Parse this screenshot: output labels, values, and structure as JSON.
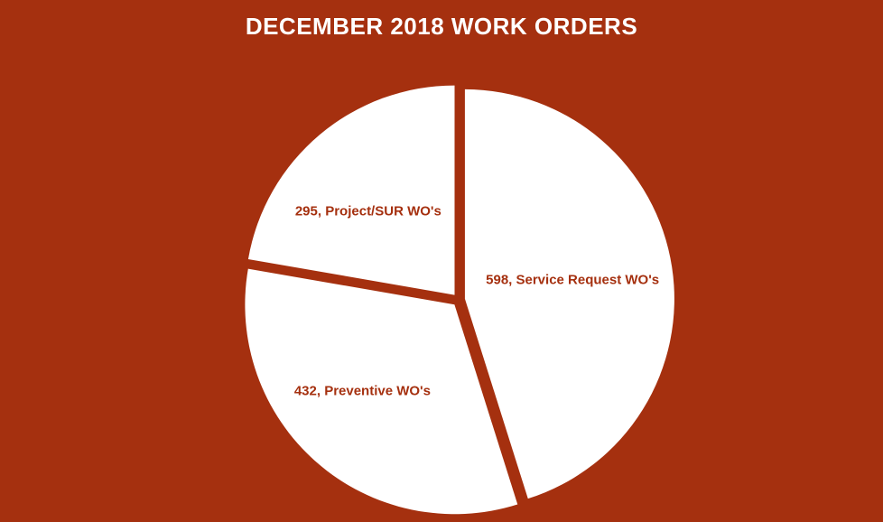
{
  "colors": {
    "background": "#A5300F",
    "slice_fill": "#FFFFFF",
    "label_text": "#A5300F",
    "title_text": "#FFFFFF"
  },
  "chart_data": {
    "type": "pie",
    "title": "DECEMBER 2018 WORK ORDERS",
    "slices": [
      {
        "category": "Service Request WO's",
        "value": 598,
        "label": "598, Service Request WO's"
      },
      {
        "category": "Preventive WO's",
        "value": 432,
        "label": "432, Preventive WO's"
      },
      {
        "category": "Project/SUR WO's",
        "value": 295,
        "label": "295, Project/SUR WO's"
      }
    ],
    "start_angle_deg": 0,
    "direction": "clockwise",
    "exploded": true,
    "legend": "none",
    "data_labels": "inside"
  }
}
